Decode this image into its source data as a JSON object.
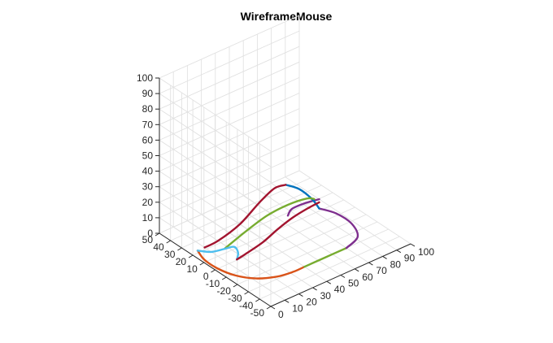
{
  "chart_data": {
    "type": "line",
    "projection": "3d",
    "title": "WireframeMouse",
    "xlabel": "",
    "ylabel": "",
    "zlabel": "",
    "xlim": [
      0,
      100
    ],
    "ylim": [
      -50,
      50
    ],
    "zlim": [
      0,
      100
    ],
    "x_ticks": [
      "0",
      "10",
      "20",
      "30",
      "40",
      "50",
      "60",
      "70",
      "80",
      "90",
      "100"
    ],
    "y_ticks": [
      "-50",
      "-40",
      "-30",
      "-20",
      "-10",
      "0",
      "10",
      "20",
      "30",
      "40",
      "50"
    ],
    "z_ticks": [
      "0",
      "10",
      "20",
      "30",
      "40",
      "50",
      "60",
      "70",
      "80",
      "90",
      "100"
    ],
    "grid": true,
    "series": [
      {
        "color": "#D95319",
        "points": [
          [
            5,
            22,
            0
          ],
          [
            2,
            12,
            0
          ],
          [
            2,
            0,
            0
          ],
          [
            5,
            -12,
            0
          ],
          [
            12,
            -22,
            0
          ],
          [
            22,
            -28,
            0
          ],
          [
            32,
            -30,
            0
          ],
          [
            40,
            -30,
            0
          ]
        ]
      },
      {
        "color": "#77AC30",
        "points": [
          [
            40,
            -30,
            0
          ],
          [
            55,
            -30,
            0
          ],
          [
            70,
            -30,
            0
          ]
        ]
      },
      {
        "color": "#7E2F8E",
        "points": [
          [
            70,
            -30,
            0
          ],
          [
            82,
            -25,
            0
          ],
          [
            88,
            -12,
            0
          ],
          [
            88,
            2,
            0
          ],
          [
            84,
            12,
            0
          ]
        ]
      },
      {
        "color": "#7E2F8E",
        "points": [
          [
            84,
            12,
            6
          ],
          [
            75,
            14,
            6
          ],
          [
            66,
            14,
            6
          ],
          [
            60,
            10,
            6
          ]
        ]
      },
      {
        "color": "#0072BD",
        "points": [
          [
            84,
            12,
            0
          ],
          [
            82,
            16,
            5
          ],
          [
            76,
            20,
            12
          ],
          [
            68,
            22,
            17
          ]
        ]
      },
      {
        "color": "#A2142F",
        "points": [
          [
            68,
            22,
            17
          ],
          [
            60,
            22,
            18
          ],
          [
            48,
            20,
            15
          ],
          [
            32,
            18,
            8
          ],
          [
            18,
            20,
            2
          ],
          [
            10,
            22,
            0
          ]
        ]
      },
      {
        "color": "#77AC30",
        "points": [
          [
            15,
            10,
            3
          ],
          [
            30,
            10,
            8
          ],
          [
            45,
            10,
            12
          ],
          [
            60,
            10,
            13
          ],
          [
            75,
            12,
            10
          ],
          [
            82,
            14,
            6
          ]
        ]
      },
      {
        "color": "#4DBEEE",
        "points": [
          [
            5,
            22,
            0
          ],
          [
            10,
            16,
            0
          ],
          [
            16,
            11,
            2
          ],
          [
            20,
            8,
            3
          ],
          [
            18,
            2,
            3
          ],
          [
            14,
            -2,
            2
          ]
        ]
      },
      {
        "color": "#A2142F",
        "points": [
          [
            14,
            -2,
            2
          ],
          [
            20,
            -2,
            3
          ],
          [
            34,
            0,
            4
          ],
          [
            48,
            4,
            5
          ],
          [
            62,
            8,
            5
          ],
          [
            74,
            10,
            5
          ],
          [
            84,
            12,
            4
          ]
        ]
      }
    ]
  }
}
